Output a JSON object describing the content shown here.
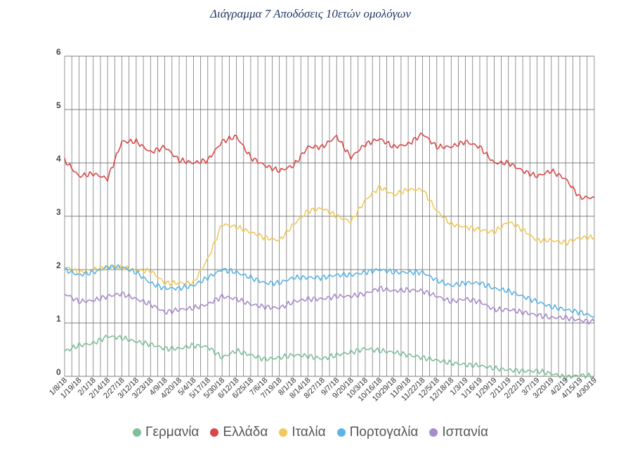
{
  "chart_data": {
    "type": "line",
    "title": "Διάγραμμα 7  Αποδόσεις 10ετών ομολόγων",
    "ylim": [
      0,
      6
    ],
    "yticks": [
      "0",
      "1",
      "2",
      "3",
      "4",
      "5",
      "6"
    ],
    "grid": true,
    "legend_position": "bottom",
    "x": [
      "1/8/18",
      "1/19/18",
      "2/1/18",
      "2/14/18",
      "2/27/18",
      "3/12/18",
      "3/23/18",
      "4/9/18",
      "4/20/18",
      "5/4/18",
      "5/17/18",
      "5/30/18",
      "6/12/18",
      "6/25/18",
      "7/6/18",
      "7/19/18",
      "8/1/18",
      "8/14/18",
      "8/27/18",
      "9/7/18",
      "9/20/18",
      "10/3/18",
      "10/16/18",
      "10/29/18",
      "11/9/18",
      "11/22/18",
      "12/5/18",
      "12/18/18",
      "1/3/19",
      "1/16/19",
      "1/29/19",
      "2/11/19",
      "2/22/19",
      "3/7/19",
      "3/20/19",
      "4/2/19",
      "4/15/19",
      "4/30/19"
    ],
    "series": [
      {
        "name": "Γερμανία",
        "color": "#7fbf9a",
        "values": [
          0.47,
          0.58,
          0.62,
          0.75,
          0.72,
          0.65,
          0.6,
          0.52,
          0.52,
          0.58,
          0.55,
          0.35,
          0.48,
          0.4,
          0.32,
          0.35,
          0.4,
          0.38,
          0.33,
          0.4,
          0.45,
          0.52,
          0.48,
          0.45,
          0.4,
          0.35,
          0.3,
          0.25,
          0.22,
          0.2,
          0.15,
          0.12,
          0.1,
          0.1,
          0.05,
          -0.02,
          0.02,
          0.0
        ]
      },
      {
        "name": "Ελλάδα",
        "color": "#d94848",
        "values": [
          4.05,
          3.75,
          3.8,
          3.7,
          4.4,
          4.4,
          4.2,
          4.3,
          4.05,
          4.0,
          4.05,
          4.4,
          4.5,
          4.1,
          3.95,
          3.85,
          3.95,
          4.3,
          4.3,
          4.5,
          4.1,
          4.35,
          4.45,
          4.3,
          4.35,
          4.55,
          4.3,
          4.3,
          4.4,
          4.3,
          4.0,
          4.0,
          3.85,
          3.75,
          3.85,
          3.7,
          3.35,
          3.35
        ]
      },
      {
        "name": "Ιταλία",
        "color": "#f0c95a",
        "values": [
          2.05,
          1.95,
          2.0,
          2.05,
          2.05,
          1.98,
          1.98,
          1.75,
          1.75,
          1.75,
          2.2,
          2.85,
          2.8,
          2.7,
          2.6,
          2.55,
          2.85,
          3.1,
          3.15,
          3.0,
          2.9,
          3.3,
          3.55,
          3.4,
          3.5,
          3.5,
          3.1,
          2.85,
          2.8,
          2.75,
          2.7,
          2.9,
          2.75,
          2.55,
          2.55,
          2.5,
          2.6,
          2.6
        ]
      },
      {
        "name": "Πορτογαλία",
        "color": "#5ab4e6",
        "values": [
          2.0,
          1.9,
          1.95,
          2.05,
          2.05,
          1.95,
          1.75,
          1.65,
          1.65,
          1.7,
          1.85,
          2.0,
          1.95,
          1.85,
          1.75,
          1.75,
          1.85,
          1.85,
          1.85,
          1.9,
          1.9,
          1.95,
          2.0,
          1.95,
          1.95,
          1.95,
          1.8,
          1.7,
          1.75,
          1.75,
          1.65,
          1.6,
          1.5,
          1.4,
          1.3,
          1.25,
          1.2,
          1.12
        ]
      },
      {
        "name": "Ισπανία",
        "color": "#a88bcb",
        "values": [
          1.55,
          1.4,
          1.42,
          1.5,
          1.55,
          1.45,
          1.35,
          1.2,
          1.25,
          1.28,
          1.35,
          1.5,
          1.45,
          1.35,
          1.3,
          1.28,
          1.4,
          1.45,
          1.45,
          1.5,
          1.5,
          1.55,
          1.65,
          1.6,
          1.62,
          1.6,
          1.5,
          1.4,
          1.45,
          1.4,
          1.25,
          1.25,
          1.2,
          1.15,
          1.1,
          1.1,
          1.05,
          1.02
        ]
      }
    ]
  }
}
